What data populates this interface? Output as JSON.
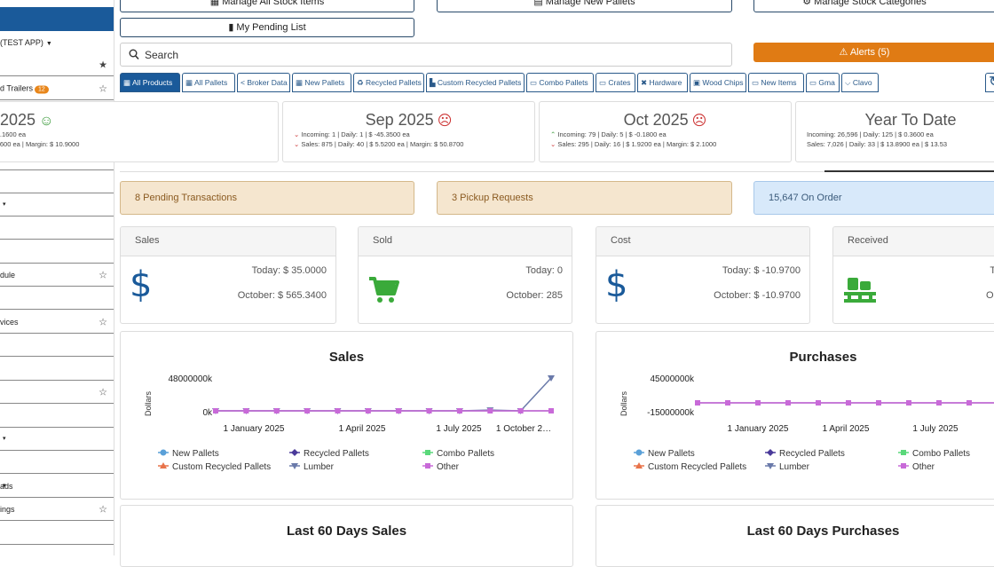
{
  "sidebar": {
    "org_label": "(TEST APP)",
    "items": [
      {
        "label": "",
        "star": "★"
      },
      {
        "label": "d Trailers",
        "badge": "12",
        "star": "☆"
      },
      {
        "label": ""
      },
      {
        "label": ""
      },
      {
        "label": ""
      },
      {
        "label": ""
      },
      {
        "label": "",
        "caret": "▾"
      },
      {
        "label": ""
      },
      {
        "label": ""
      },
      {
        "label": "dule",
        "star": "☆"
      },
      {
        "label": ""
      },
      {
        "label": "vices",
        "star": "☆"
      },
      {
        "label": ""
      },
      {
        "label": ""
      },
      {
        "label": "",
        "star": "☆"
      },
      {
        "label": ""
      },
      {
        "label": "",
        "caret": "▾"
      },
      {
        "label": ""
      },
      {
        "label": "ads",
        "caret": "▾"
      },
      {
        "label": "ings",
        "star": "☆"
      },
      {
        "label": ""
      },
      {
        "label": ""
      }
    ]
  },
  "top_buttons": {
    "manage_all_stock": "Manage All Stock Items",
    "manage_new_pallets": "Manage New Pallets",
    "manage_stock_categories": "Manage Stock Categories",
    "my_pending_list": "My Pending List"
  },
  "search": {
    "placeholder": "Search"
  },
  "alerts": {
    "label": "Alerts (5)"
  },
  "tabs": [
    "All Products",
    "All Pallets",
    "Broker Data",
    "New Pallets",
    "Recycled Pallets",
    "Custom Recycled Pallets",
    "Combo Pallets",
    "Crates",
    "Hardware",
    "Wood Chips",
    "New Items",
    "Gma",
    "Clavo"
  ],
  "stats": [
    {
      "title": "ug 2025",
      "mood": "happy",
      "line1": "14 | $ 1.1600 ea",
      "line2": "| $ 12.0600 ea | Margin: $ 10.9000"
    },
    {
      "title": "Sep 2025",
      "mood": "sad",
      "line1": "Incoming: 1 | Daily: 1 | $ -45.3500 ea",
      "line2": "Sales: 875 | Daily: 40 | $ 5.5200 ea | Margin: $ 50.8700"
    },
    {
      "title": "Oct 2025",
      "mood": "sad",
      "line1": "Incoming: 79 | Daily: 5 | $ -0.1800 ea",
      "line2": "Sales: 295 | Daily: 16 | $ 1.9200 ea | Margin: $ 2.1000"
    },
    {
      "title": "Year To Date",
      "mood": "",
      "line1": "Incoming: 26,596 | Daily: 125 | $ 0.3600 ea",
      "line2": "Sales: 7,026 | Daily: 33 | $ 13.8900 ea | $ 13.53"
    }
  ],
  "colors": {
    "primary": "#1a5a9a",
    "alert": "#e07b14",
    "pending_bg": "#f5e6cf",
    "order_bg": "#d8e9fa",
    "dollar": "#1a5a9a",
    "green_icon": "#3aaa3a"
  },
  "info": {
    "pending": "8 Pending Transactions",
    "pickup": "3 Pickup Requests",
    "on_order": "15,647 On Order"
  },
  "kpis": [
    {
      "title": "Sales",
      "icon": "dollar-icon",
      "today": "Today: $ 35.0000",
      "month": "October: $ 565.3400"
    },
    {
      "title": "Sold",
      "icon": "cart-icon",
      "today": "Today: 0",
      "month": "October: 285"
    },
    {
      "title": "Cost",
      "icon": "dollar-icon",
      "today": "Today: $ -10.9700",
      "month": "October: $ -10.9700"
    },
    {
      "title": "Received",
      "icon": "pallet-icon",
      "today": "To",
      "month": "Oct"
    }
  ],
  "chart_data": [
    {
      "type": "line",
      "title": "Sales",
      "ylabel": "Dollars",
      "yticks": [
        "48000000k",
        "0k"
      ],
      "xticks": [
        "1 January 2025",
        "1 April 2025",
        "1 July 2025",
        "1 October 2…"
      ],
      "series": [
        {
          "name": "New Pallets",
          "color": "#5aa0d8",
          "marker": "circle"
        },
        {
          "name": "Recycled Pallets",
          "color": "#4a3a9a",
          "marker": "diamond"
        },
        {
          "name": "Combo Pallets",
          "color": "#5ad87a",
          "marker": "square"
        },
        {
          "name": "Custom Recycled Pallets",
          "color": "#e8734a",
          "marker": "triangle"
        },
        {
          "name": "Lumber",
          "color": "#6a7aaa",
          "marker": "triangle-down",
          "values": [
            0,
            0,
            0,
            0,
            0,
            0,
            0,
            0,
            0,
            1200000,
            0,
            48000000
          ]
        },
        {
          "name": "Other",
          "color": "#c86ad8",
          "marker": "square",
          "values": [
            0,
            0,
            0,
            0,
            0,
            0,
            0,
            0,
            0,
            0,
            0,
            0
          ]
        }
      ]
    },
    {
      "type": "line",
      "title": "Purchases",
      "ylabel": "Dollars",
      "yticks": [
        "45000000k",
        "-15000000k"
      ],
      "xticks": [
        "1 January 2025",
        "1 April 2025",
        "1 July 2025"
      ],
      "series": [
        {
          "name": "New Pallets",
          "color": "#5aa0d8",
          "marker": "circle"
        },
        {
          "name": "Recycled Pallets",
          "color": "#4a3a9a",
          "marker": "diamond"
        },
        {
          "name": "Combo Pallets",
          "color": "#5ad87a",
          "marker": "square"
        },
        {
          "name": "Custom Recycled Pallets",
          "color": "#e8734a",
          "marker": "triangle"
        },
        {
          "name": "Lumber",
          "color": "#6a7aaa",
          "marker": "triangle-down"
        },
        {
          "name": "Other",
          "color": "#c86ad8",
          "marker": "square"
        }
      ]
    }
  ],
  "bottom": {
    "sales60": "Last 60 Days Sales",
    "purchases60": "Last 60 Days Purchases"
  }
}
